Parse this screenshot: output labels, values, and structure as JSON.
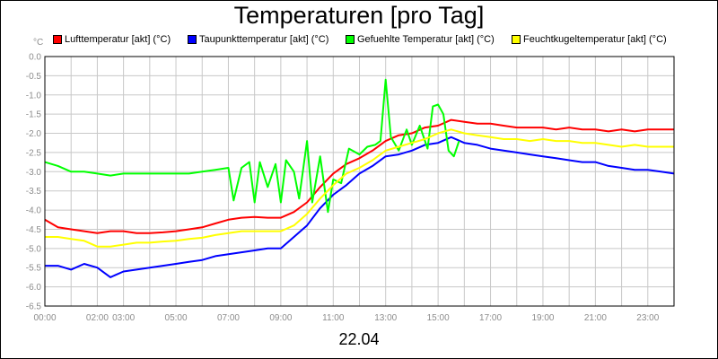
{
  "chart_data": {
    "type": "line",
    "title": "Temperaturen [pro Tag]",
    "y_unit": "°C",
    "x_caption": "22.04",
    "ylim": [
      -6.5,
      0.0
    ],
    "xlim": [
      0,
      24
    ],
    "y_ticks": [
      0.0,
      -0.5,
      -1.0,
      -1.5,
      -2.0,
      -2.5,
      -3.0,
      -3.5,
      -4.0,
      -4.5,
      -5.0,
      -5.5,
      -6.0,
      -6.5
    ],
    "y_tick_labels": [
      "0.0",
      "-0.5",
      "-1.0",
      "-1.5",
      "-2.0",
      "-2.5",
      "-3.0",
      "-3.5",
      "-4.0",
      "-4.5",
      "-5.0",
      "-5.5",
      "-6.0",
      "-6.5"
    ],
    "x_ticks": [
      0,
      2,
      3,
      5,
      7,
      9,
      11,
      13,
      15,
      17,
      19,
      21,
      23
    ],
    "x_tick_labels": [
      "00:00",
      "02:00",
      "03:00",
      "05:00",
      "07:00",
      "09:00",
      "11:00",
      "13:00",
      "15:00",
      "17:00",
      "19:00",
      "21:00",
      "23:00"
    ],
    "grid": true,
    "legend_position": "top",
    "series": [
      {
        "name": "Lufttemperatur [akt] (°C)",
        "color": "#ff0000",
        "points": [
          [
            0,
            -4.25
          ],
          [
            0.5,
            -4.45
          ],
          [
            1,
            -4.5
          ],
          [
            1.5,
            -4.55
          ],
          [
            2,
            -4.6
          ],
          [
            2.5,
            -4.55
          ],
          [
            3,
            -4.55
          ],
          [
            3.5,
            -4.6
          ],
          [
            4,
            -4.6
          ],
          [
            4.5,
            -4.58
          ],
          [
            5,
            -4.55
          ],
          [
            5.5,
            -4.5
          ],
          [
            6,
            -4.45
          ],
          [
            6.5,
            -4.35
          ],
          [
            7,
            -4.25
          ],
          [
            7.5,
            -4.2
          ],
          [
            8,
            -4.18
          ],
          [
            8.5,
            -4.2
          ],
          [
            9,
            -4.2
          ],
          [
            9.5,
            -4.05
          ],
          [
            10,
            -3.8
          ],
          [
            10.5,
            -3.4
          ],
          [
            11,
            -3.05
          ],
          [
            11.5,
            -2.8
          ],
          [
            12,
            -2.65
          ],
          [
            12.5,
            -2.45
          ],
          [
            13,
            -2.2
          ],
          [
            13.5,
            -2.05
          ],
          [
            14,
            -2.0
          ],
          [
            14.5,
            -1.85
          ],
          [
            15,
            -1.8
          ],
          [
            15.5,
            -1.65
          ],
          [
            16,
            -1.7
          ],
          [
            16.5,
            -1.75
          ],
          [
            17,
            -1.75
          ],
          [
            17.5,
            -1.8
          ],
          [
            18,
            -1.85
          ],
          [
            18.5,
            -1.85
          ],
          [
            19,
            -1.85
          ],
          [
            19.5,
            -1.9
          ],
          [
            20,
            -1.85
          ],
          [
            20.5,
            -1.9
          ],
          [
            21,
            -1.9
          ],
          [
            21.5,
            -1.95
          ],
          [
            22,
            -1.9
          ],
          [
            22.5,
            -1.95
          ],
          [
            23,
            -1.9
          ],
          [
            23.5,
            -1.9
          ],
          [
            24,
            -1.9
          ]
        ]
      },
      {
        "name": "Taupunkttemperatur [akt] (°C)",
        "color": "#0000ff",
        "points": [
          [
            0,
            -5.45
          ],
          [
            0.5,
            -5.45
          ],
          [
            1,
            -5.55
          ],
          [
            1.5,
            -5.4
          ],
          [
            2,
            -5.5
          ],
          [
            2.5,
            -5.75
          ],
          [
            3,
            -5.6
          ],
          [
            3.5,
            -5.55
          ],
          [
            4,
            -5.5
          ],
          [
            4.5,
            -5.45
          ],
          [
            5,
            -5.4
          ],
          [
            5.5,
            -5.35
          ],
          [
            6,
            -5.3
          ],
          [
            6.5,
            -5.2
          ],
          [
            7,
            -5.15
          ],
          [
            7.5,
            -5.1
          ],
          [
            8,
            -5.05
          ],
          [
            8.5,
            -5.0
          ],
          [
            9,
            -5.0
          ],
          [
            9.5,
            -4.7
          ],
          [
            10,
            -4.4
          ],
          [
            10.5,
            -3.95
          ],
          [
            11,
            -3.6
          ],
          [
            11.5,
            -3.35
          ],
          [
            12,
            -3.05
          ],
          [
            12.5,
            -2.85
          ],
          [
            13,
            -2.6
          ],
          [
            13.5,
            -2.55
          ],
          [
            14,
            -2.45
          ],
          [
            14.5,
            -2.3
          ],
          [
            15,
            -2.25
          ],
          [
            15.5,
            -2.1
          ],
          [
            16,
            -2.25
          ],
          [
            16.5,
            -2.3
          ],
          [
            17,
            -2.4
          ],
          [
            17.5,
            -2.45
          ],
          [
            18,
            -2.5
          ],
          [
            18.5,
            -2.55
          ],
          [
            19,
            -2.6
          ],
          [
            19.5,
            -2.65
          ],
          [
            20,
            -2.7
          ],
          [
            20.5,
            -2.75
          ],
          [
            21,
            -2.75
          ],
          [
            21.5,
            -2.85
          ],
          [
            22,
            -2.9
          ],
          [
            22.5,
            -2.95
          ],
          [
            23,
            -2.95
          ],
          [
            23.5,
            -3.0
          ],
          [
            24,
            -3.05
          ]
        ]
      },
      {
        "name": "Gefuehlte Temperatur [akt] (°C)",
        "color": "#00ff00",
        "points": [
          [
            0,
            -2.75
          ],
          [
            0.5,
            -2.85
          ],
          [
            1,
            -3.0
          ],
          [
            1.5,
            -3.0
          ],
          [
            2,
            -3.05
          ],
          [
            2.5,
            -3.1
          ],
          [
            3,
            -3.05
          ],
          [
            3.5,
            -3.05
          ],
          [
            4,
            -3.05
          ],
          [
            4.5,
            -3.05
          ],
          [
            5,
            -3.05
          ],
          [
            5.5,
            -3.05
          ],
          [
            6,
            -3.0
          ],
          [
            6.5,
            -2.95
          ],
          [
            7,
            -2.9
          ],
          [
            7.2,
            -3.75
          ],
          [
            7.5,
            -2.9
          ],
          [
            7.8,
            -2.75
          ],
          [
            8,
            -3.8
          ],
          [
            8.2,
            -2.75
          ],
          [
            8.5,
            -3.4
          ],
          [
            8.8,
            -2.8
          ],
          [
            9,
            -3.8
          ],
          [
            9.2,
            -2.7
          ],
          [
            9.5,
            -3.0
          ],
          [
            9.7,
            -3.7
          ],
          [
            10,
            -2.2
          ],
          [
            10.2,
            -3.8
          ],
          [
            10.5,
            -2.6
          ],
          [
            10.8,
            -4.05
          ],
          [
            11,
            -3.2
          ],
          [
            11.3,
            -3.3
          ],
          [
            11.6,
            -2.4
          ],
          [
            12,
            -2.55
          ],
          [
            12.3,
            -2.35
          ],
          [
            12.6,
            -2.3
          ],
          [
            12.8,
            -2.2
          ],
          [
            13,
            -0.6
          ],
          [
            13.2,
            -2.1
          ],
          [
            13.5,
            -2.45
          ],
          [
            13.8,
            -1.9
          ],
          [
            14,
            -2.3
          ],
          [
            14.3,
            -1.8
          ],
          [
            14.6,
            -2.4
          ],
          [
            14.8,
            -1.3
          ],
          [
            15,
            -1.25
          ],
          [
            15.2,
            -1.5
          ],
          [
            15.4,
            -2.45
          ],
          [
            15.6,
            -2.6
          ],
          [
            15.8,
            -2.2
          ]
        ]
      },
      {
        "name": "Feuchtkugeltemperatur [akt] (°C)",
        "color": "#ffff00",
        "points": [
          [
            0,
            -4.7
          ],
          [
            0.5,
            -4.7
          ],
          [
            1,
            -4.75
          ],
          [
            1.5,
            -4.8
          ],
          [
            2,
            -4.95
          ],
          [
            2.5,
            -4.95
          ],
          [
            3,
            -4.9
          ],
          [
            3.5,
            -4.85
          ],
          [
            4,
            -4.85
          ],
          [
            4.5,
            -4.82
          ],
          [
            5,
            -4.8
          ],
          [
            5.5,
            -4.75
          ],
          [
            6,
            -4.72
          ],
          [
            6.5,
            -4.65
          ],
          [
            7,
            -4.6
          ],
          [
            7.5,
            -4.55
          ],
          [
            8,
            -4.55
          ],
          [
            8.5,
            -4.55
          ],
          [
            9,
            -4.55
          ],
          [
            9.5,
            -4.4
          ],
          [
            10,
            -4.1
          ],
          [
            10.5,
            -3.7
          ],
          [
            11,
            -3.35
          ],
          [
            11.5,
            -3.05
          ],
          [
            12,
            -2.9
          ],
          [
            12.5,
            -2.7
          ],
          [
            13,
            -2.45
          ],
          [
            13.5,
            -2.35
          ],
          [
            14,
            -2.25
          ],
          [
            14.5,
            -2.15
          ],
          [
            15,
            -2.0
          ],
          [
            15.5,
            -1.9
          ],
          [
            16,
            -2.0
          ],
          [
            16.5,
            -2.05
          ],
          [
            17,
            -2.1
          ],
          [
            17.5,
            -2.15
          ],
          [
            18,
            -2.15
          ],
          [
            18.5,
            -2.2
          ],
          [
            19,
            -2.15
          ],
          [
            19.5,
            -2.2
          ],
          [
            20,
            -2.2
          ],
          [
            20.5,
            -2.25
          ],
          [
            21,
            -2.25
          ],
          [
            21.5,
            -2.3
          ],
          [
            22,
            -2.35
          ],
          [
            22.5,
            -2.3
          ],
          [
            23,
            -2.35
          ],
          [
            23.5,
            -2.35
          ],
          [
            24,
            -2.35
          ]
        ]
      }
    ]
  }
}
